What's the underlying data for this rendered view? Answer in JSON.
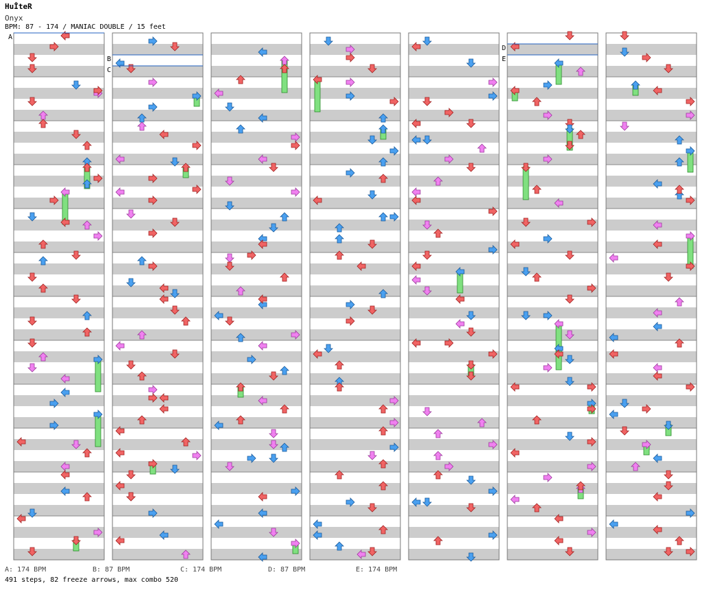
{
  "header": {
    "site_logo": "HuÎteR",
    "song_title": "Onyx",
    "chart_info": "BPM: 87 - 174 / MANIAC DOUBLE / 15 feet"
  },
  "markers": [
    {
      "label": "A",
      "column": 0,
      "row": 0
    },
    {
      "label": "B",
      "column": 1,
      "row": 32
    },
    {
      "label": "C",
      "column": 1,
      "row": 48
    },
    {
      "label": "D",
      "column": 5,
      "row": 16
    },
    {
      "label": "E",
      "column": 5,
      "row": 32
    }
  ],
  "bpm_legend": [
    {
      "marker": "A",
      "text": "A: 174 BPM"
    },
    {
      "marker": "B",
      "text": "B: 87 BPM"
    },
    {
      "marker": "C",
      "text": "C: 174 BPM"
    },
    {
      "marker": "D",
      "text": "D: 87 BPM"
    },
    {
      "marker": "E",
      "text": "E: 174 BPM"
    }
  ],
  "stats": "491 steps, 82 freeze arrows, max combo 520",
  "chart_data": {
    "type": "step-chart",
    "mode": "MANIAC DOUBLE",
    "difficulty_feet": 15,
    "bpm_range": [
      87,
      174
    ],
    "columns": 7,
    "lanes": [
      "P1-left",
      "P1-down",
      "P1-up",
      "P1-right",
      "P2-left",
      "P2-down",
      "P2-up",
      "P2-right"
    ],
    "steps": 491,
    "freeze_arrows": 82,
    "max_combo": 520,
    "colors": {
      "quarter": "#f06464",
      "eighth": "#4aa0f0",
      "sixteenth": "#f080f0",
      "freeze": "#80e080",
      "bar_gray": "#cccccc",
      "bpm_line": "#2060c0"
    }
  }
}
